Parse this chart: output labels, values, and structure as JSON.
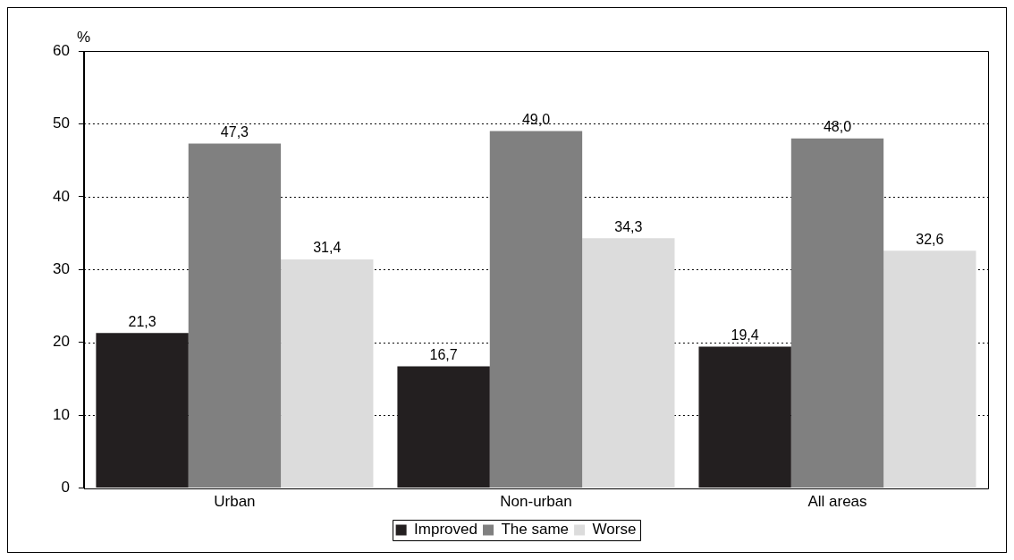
{
  "chart_data": {
    "type": "bar",
    "ylabel": "%",
    "categories": [
      "Urban",
      "Non-urban",
      "All areas"
    ],
    "series": [
      {
        "name": "Improved",
        "color": "#231f20",
        "values": [
          21.3,
          16.7,
          19.4
        ],
        "value_labels": [
          "21,3",
          "16,7",
          "19,4"
        ]
      },
      {
        "name": "The same",
        "color": "#808080",
        "values": [
          47.3,
          49.0,
          48.0
        ],
        "value_labels": [
          "47,3",
          "49,0",
          "48,0"
        ]
      },
      {
        "name": "Worse",
        "color": "#dcdcdc",
        "values": [
          31.4,
          34.3,
          32.6
        ],
        "value_labels": [
          "31,4",
          "34,3",
          "32,6"
        ]
      }
    ],
    "ylim": [
      0,
      60
    ],
    "yticks": [
      0,
      10,
      20,
      30,
      40,
      50,
      60
    ],
    "grid": "y",
    "legend": "bottom"
  }
}
